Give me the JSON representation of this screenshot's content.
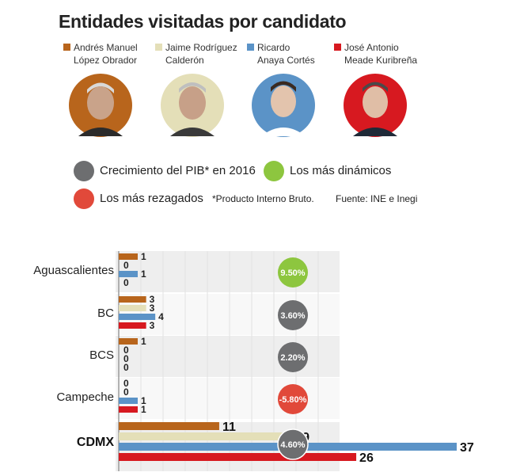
{
  "title": "Entidades visitadas por candidato",
  "candidates": [
    {
      "line1": "Andrés Manuel",
      "line2": "López Obrador",
      "color": "#b8651c"
    },
    {
      "line1": "Jaime Rodríguez",
      "line2": "Calderón",
      "color": "#e4dfb8"
    },
    {
      "line1": "Ricardo",
      "line2": "Anaya Cortés",
      "color": "#5b93c7"
    },
    {
      "line1": "José Antonio",
      "line2": "Meade Kuribreña",
      "color": "#d71920"
    }
  ],
  "legend": {
    "gray_label": "Crecimiento del PIB* en 2016",
    "green_label": "Los más dinámicos",
    "red_label": "Los más rezagados",
    "note": "*Producto Interno Bruto.",
    "source": "Fuente: INE e Inegi",
    "gray_color": "#6d6e70",
    "green_color": "#8dc63f",
    "red_color": "#e1493a"
  },
  "chart_data": {
    "type": "bar",
    "orientation": "horizontal",
    "categories": [
      "Aguascalientes",
      "BC",
      "BCS",
      "Campeche",
      "CDMX"
    ],
    "series": [
      {
        "name": "Andrés Manuel López Obrador",
        "color": "#b8651c",
        "values": [
          1,
          3,
          1,
          0,
          11
        ]
      },
      {
        "name": "Jaime Rodríguez Calderón",
        "color": "#e4dfb8",
        "values": [
          0,
          3,
          0,
          0,
          19
        ]
      },
      {
        "name": "Ricardo Anaya Cortés",
        "color": "#5b93c7",
        "values": [
          1,
          4,
          0,
          1,
          37
        ]
      },
      {
        "name": "José Antonio Meade Kuribreña",
        "color": "#d71920",
        "values": [
          0,
          3,
          0,
          1,
          26
        ]
      }
    ],
    "gdp_growth": [
      {
        "label": "9.50%",
        "class": "dinamico"
      },
      {
        "label": "3.60%",
        "class": "neutral"
      },
      {
        "label": "2.20%",
        "class": "neutral"
      },
      {
        "label": "-5.80%",
        "class": "rezagado"
      },
      {
        "label": "4.60%",
        "class": "neutral"
      }
    ],
    "highlighted_category": "CDMX",
    "xlim": [
      0,
      37
    ]
  }
}
